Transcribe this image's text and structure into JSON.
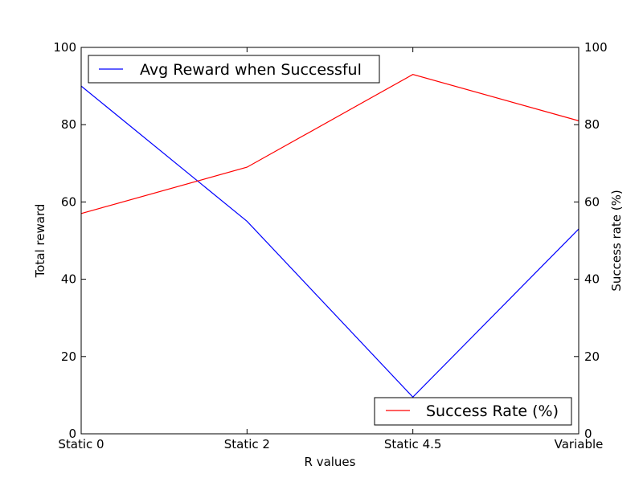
{
  "chart_data": {
    "type": "line",
    "categories": [
      "Static 0",
      "Static 2",
      "Static 4.5",
      "Variable"
    ],
    "xlabel": "R values",
    "ylabel": "Total reward",
    "y2label": "Success rate (%)",
    "ylim": [
      0,
      100
    ],
    "y2lim": [
      0,
      100
    ],
    "yticks": [
      0,
      20,
      40,
      60,
      80,
      100
    ],
    "y2ticks": [
      0,
      20,
      40,
      60,
      80,
      100
    ],
    "grid": false,
    "series": [
      {
        "name": "Avg Reward when Successful",
        "axis": "left",
        "color": "#0000ff",
        "values": [
          90,
          55,
          9.5,
          53
        ],
        "legend_position": "upper-left"
      },
      {
        "name": "Success Rate (%)",
        "axis": "right",
        "color": "#ff0000",
        "values": [
          57,
          69,
          93,
          81
        ],
        "legend_position": "lower-right"
      }
    ]
  }
}
